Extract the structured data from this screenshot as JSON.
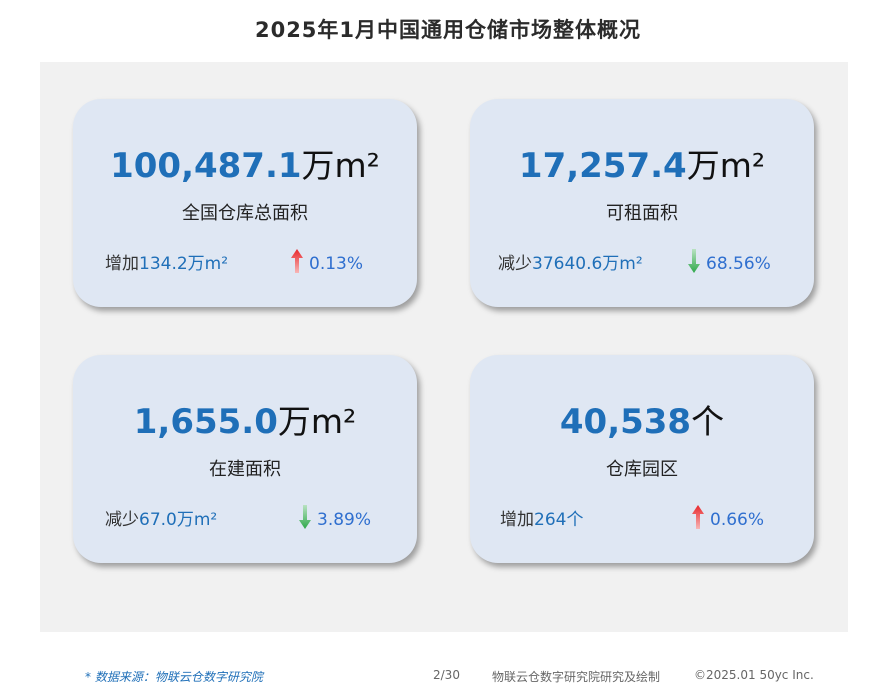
{
  "title": "2025年1月中国通用仓储市场整体概况",
  "colors": {
    "accent_blue": "#1f6fb8",
    "up_red": "#e8262a",
    "down_green": "#2ea84a",
    "card_bg": "#dfe7f3"
  },
  "cards": [
    {
      "value": "100,487.1",
      "unit": "万m²",
      "label": "全国仓库总面积",
      "change_prefix": "增加",
      "change_value": "134.2万m²",
      "direction": "up",
      "direction_icon": "arrow-up-red",
      "percent": "0.13%"
    },
    {
      "value": "17,257.4",
      "unit": "万m²",
      "label": "可租面积",
      "change_prefix": "减少",
      "change_value": "37640.6万m²",
      "direction": "down",
      "direction_icon": "arrow-down-green",
      "percent": "68.56%"
    },
    {
      "value": "1,655.0",
      "unit": "万m²",
      "label": "在建面积",
      "change_prefix": "减少",
      "change_value": "67.0万m²",
      "direction": "down",
      "direction_icon": "arrow-down-green",
      "percent": "3.89%"
    },
    {
      "value": "40,538",
      "unit": "个",
      "label": "仓库园区",
      "change_prefix": "增加",
      "change_value": "264个",
      "direction": "up",
      "direction_icon": "arrow-up-red",
      "percent": "0.66%"
    }
  ],
  "footer": {
    "source": "* 数据来源：物联云仓数字研究院",
    "page": "2/30",
    "credit": "物联云仓数字研究院研究及绘制",
    "copyright": "©2025.01 50yc Inc."
  }
}
